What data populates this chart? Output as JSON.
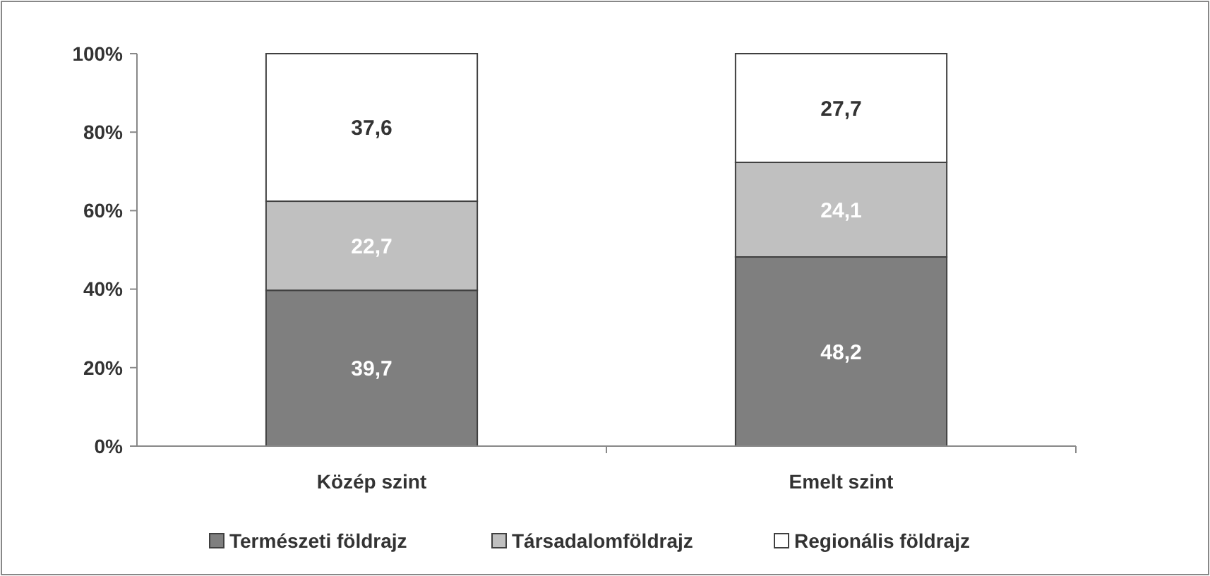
{
  "chart_data": {
    "type": "bar",
    "stacked": true,
    "categories": [
      "Közép szint",
      "Emelt szint"
    ],
    "series": [
      {
        "name": "Természeti földrajz",
        "color": "#7f7f7f",
        "values": [
          39.7,
          48.2
        ],
        "value_labels": [
          "39,7",
          "48,2"
        ]
      },
      {
        "name": "Társadalomföldrajz",
        "color": "#c0c0c0",
        "values": [
          22.7,
          24.1
        ],
        "value_labels": [
          "22,7",
          "24,1"
        ]
      },
      {
        "name": "Regionális földrajz",
        "color": "#ffffff",
        "values": [
          37.6,
          27.7
        ],
        "value_labels": [
          "37,6",
          "27,7"
        ]
      }
    ],
    "ylim": [
      0,
      100
    ],
    "yticks": [
      {
        "value": 0,
        "label": "0%"
      },
      {
        "value": 20,
        "label": "20%"
      },
      {
        "value": 40,
        "label": "40%"
      },
      {
        "value": 60,
        "label": "60%"
      },
      {
        "value": 80,
        "label": "80%"
      },
      {
        "value": 100,
        "label": "100%"
      }
    ],
    "grid": false,
    "legend": "bottom"
  }
}
